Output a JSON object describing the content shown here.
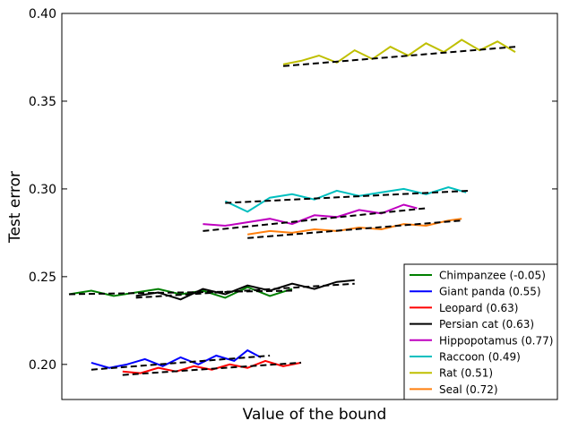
{
  "chart_data": {
    "type": "line",
    "xlabel": "Value of the bound",
    "ylabel": "Test error",
    "ylim": [
      0.18,
      0.4
    ],
    "xlim": [
      0,
      100
    ],
    "x_ticks_shown": false,
    "yticks": [
      "0.20",
      "0.25",
      "0.30",
      "0.35",
      "0.40"
    ],
    "grid": false,
    "legend_position": "lower-right",
    "trend_line_style": "black dashed",
    "series": [
      {
        "name": "Chimpanzee (-0.05)",
        "color": "#007f00",
        "x": [
          0,
          5,
          10,
          15,
          20,
          25,
          30,
          35,
          40,
          45,
          50
        ],
        "y": [
          0.24,
          0.242,
          0.239,
          0.241,
          0.243,
          0.24,
          0.242,
          0.238,
          0.244,
          0.239,
          0.243
        ],
        "trend": [
          [
            0,
            0.24
          ],
          [
            50,
            0.242
          ]
        ]
      },
      {
        "name": "Giant panda (0.55)",
        "color": "#0000ff",
        "x": [
          5,
          9,
          13,
          17,
          21,
          25,
          29,
          33,
          37,
          40,
          43
        ],
        "y": [
          0.201,
          0.198,
          0.2,
          0.203,
          0.199,
          0.204,
          0.2,
          0.205,
          0.202,
          0.208,
          0.204
        ],
        "trend": [
          [
            5,
            0.197
          ],
          [
            45,
            0.205
          ]
        ]
      },
      {
        "name": "Leopard (0.63)",
        "color": "#ff0000",
        "x": [
          12,
          16,
          20,
          24,
          28,
          32,
          36,
          40,
          44,
          48,
          52
        ],
        "y": [
          0.196,
          0.195,
          0.198,
          0.196,
          0.199,
          0.197,
          0.2,
          0.198,
          0.202,
          0.199,
          0.201
        ],
        "trend": [
          [
            12,
            0.194
          ],
          [
            52,
            0.201
          ]
        ]
      },
      {
        "name": "Persian cat (0.63)",
        "color": "#000000",
        "x": [
          15,
          20,
          25,
          30,
          35,
          40,
          45,
          50,
          55,
          60,
          64
        ],
        "y": [
          0.239,
          0.241,
          0.237,
          0.243,
          0.24,
          0.245,
          0.242,
          0.246,
          0.243,
          0.247,
          0.248
        ],
        "trend": [
          [
            15,
            0.238
          ],
          [
            64,
            0.246
          ]
        ]
      },
      {
        "name": "Hippopotamus (0.77)",
        "color": "#bf00bf",
        "x": [
          30,
          35,
          40,
          45,
          50,
          55,
          60,
          65,
          70,
          75,
          78
        ],
        "y": [
          0.28,
          0.279,
          0.281,
          0.283,
          0.28,
          0.285,
          0.284,
          0.288,
          0.286,
          0.291,
          0.289
        ],
        "trend": [
          [
            30,
            0.276
          ],
          [
            80,
            0.289
          ]
        ]
      },
      {
        "name": "Raccoon (0.49)",
        "color": "#00bfbf",
        "x": [
          35,
          40,
          45,
          50,
          55,
          60,
          65,
          70,
          75,
          80,
          85,
          89
        ],
        "y": [
          0.293,
          0.287,
          0.295,
          0.297,
          0.294,
          0.299,
          0.296,
          0.298,
          0.3,
          0.297,
          0.301,
          0.298
        ],
        "trend": [
          [
            35,
            0.292
          ],
          [
            90,
            0.299
          ]
        ]
      },
      {
        "name": "Rat (0.51)",
        "color": "#bfbf00",
        "x": [
          48,
          52,
          56,
          60,
          64,
          68,
          72,
          76,
          80,
          84,
          88,
          92,
          96,
          100
        ],
        "y": [
          0.371,
          0.373,
          0.376,
          0.372,
          0.379,
          0.374,
          0.381,
          0.376,
          0.383,
          0.378,
          0.385,
          0.379,
          0.384,
          0.378
        ],
        "trend": [
          [
            48,
            0.37
          ],
          [
            100,
            0.381
          ]
        ]
      },
      {
        "name": "Seal (0.72)",
        "color": "#ff7f0e",
        "x": [
          40,
          45,
          50,
          55,
          60,
          65,
          70,
          75,
          80,
          85,
          88
        ],
        "y": [
          0.274,
          0.276,
          0.275,
          0.277,
          0.276,
          0.278,
          0.277,
          0.28,
          0.279,
          0.282,
          0.283
        ],
        "trend": [
          [
            40,
            0.272
          ],
          [
            88,
            0.282
          ]
        ]
      }
    ]
  }
}
